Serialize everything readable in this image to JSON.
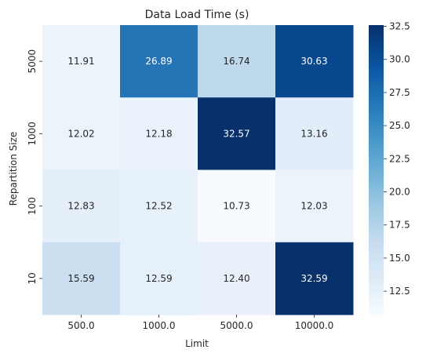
{
  "chart_data": {
    "type": "heatmap",
    "title": "Data Load Time (s)",
    "xlabel": "Limit",
    "ylabel": "Repartition Size",
    "x_categories": [
      "500.0",
      "1000.0",
      "5000.0",
      "10000.0"
    ],
    "y_categories": [
      "5000",
      "1000",
      "100",
      "10"
    ],
    "values": [
      [
        11.91,
        26.89,
        16.74,
        30.63
      ],
      [
        12.02,
        12.18,
        32.57,
        13.16
      ],
      [
        12.83,
        12.52,
        10.73,
        12.03
      ],
      [
        15.59,
        12.59,
        12.4,
        32.59
      ]
    ],
    "value_labels": [
      [
        "11.91",
        "26.89",
        "16.74",
        "30.63"
      ],
      [
        "12.02",
        "12.18",
        "32.57",
        "13.16"
      ],
      [
        "12.83",
        "12.52",
        "10.73",
        "12.03"
      ],
      [
        "15.59",
        "12.59",
        "12.40",
        "32.59"
      ]
    ],
    "colormap": "Blues",
    "vmin": 10.73,
    "vmax": 32.59,
    "colorbar_ticks": [
      12.5,
      15.0,
      17.5,
      20.0,
      22.5,
      25.0,
      27.5,
      30.0,
      32.5
    ],
    "colorbar_tick_labels": [
      "12.5",
      "15.0",
      "17.5",
      "20.0",
      "22.5",
      "25.0",
      "27.5",
      "30.0",
      "32.5"
    ]
  }
}
